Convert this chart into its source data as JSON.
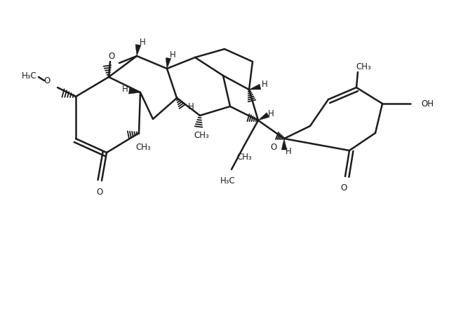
{
  "bg_color": "#ffffff",
  "line_color": "#1c1c1c",
  "line_width": 1.8,
  "font_size": 8.5,
  "figsize": [
    6.4,
    4.7
  ],
  "dpi": 100,
  "xlim": [
    0,
    6.4
  ],
  "ylim": [
    0,
    4.7
  ]
}
